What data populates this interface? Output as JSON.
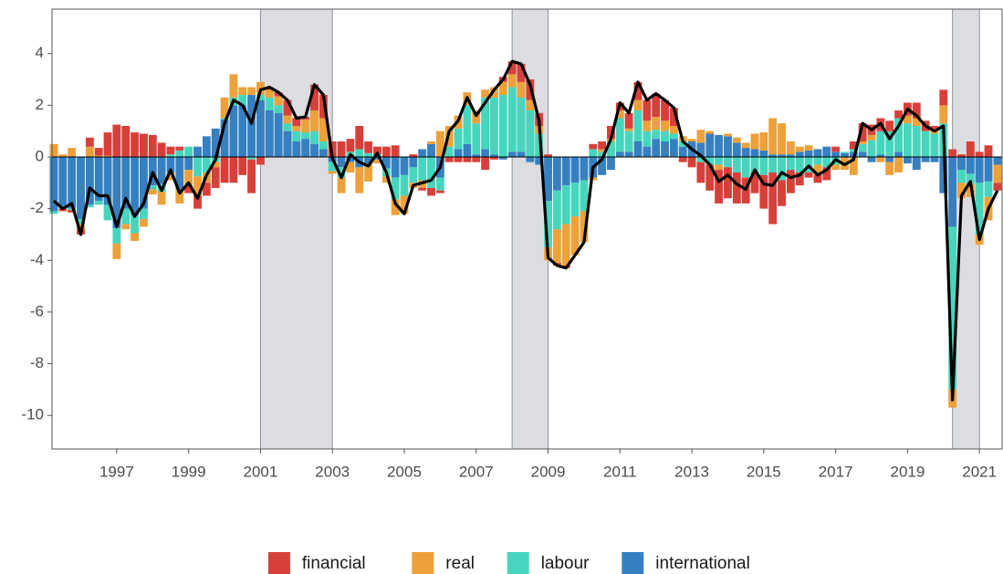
{
  "chart_data": {
    "type": "stacked_bar_line",
    "x": [
      1995.25,
      1995.5,
      1995.75,
      1996,
      1996.25,
      1996.5,
      1996.75,
      1997,
      1997.25,
      1997.5,
      1997.75,
      1998,
      1998.25,
      1998.5,
      1998.75,
      1999,
      1999.25,
      1999.5,
      1999.75,
      2000,
      2000.25,
      2000.5,
      2000.75,
      2001,
      2001.25,
      2001.5,
      2001.75,
      2002,
      2002.25,
      2002.5,
      2002.75,
      2003,
      2003.25,
      2003.5,
      2003.75,
      2004,
      2004.25,
      2004.5,
      2004.75,
      2005,
      2005.25,
      2005.5,
      2005.75,
      2006,
      2006.25,
      2006.5,
      2006.75,
      2007,
      2007.25,
      2007.5,
      2007.75,
      2008,
      2008.25,
      2008.5,
      2008.75,
      2009,
      2009.25,
      2009.5,
      2009.75,
      2010,
      2010.25,
      2010.5,
      2010.75,
      2011,
      2011.25,
      2011.5,
      2011.75,
      2012,
      2012.25,
      2012.5,
      2012.75,
      2013,
      2013.25,
      2013.5,
      2013.75,
      2014,
      2014.25,
      2014.5,
      2014.75,
      2015,
      2015.25,
      2015.5,
      2015.75,
      2016,
      2016.25,
      2016.5,
      2016.75,
      2017,
      2017.25,
      2017.5,
      2017.75,
      2018,
      2018.25,
      2018.5,
      2018.75,
      2019,
      2019.25,
      2019.5,
      2019.75,
      2020,
      2020.25,
      2020.5,
      2020.75,
      2021,
      2021.25,
      2021.5
    ],
    "series": [
      {
        "name": "financial",
        "color": "#d7403a",
        "values": [
          0,
          -0.1,
          -0.1,
          -0.2,
          0.35,
          0.3,
          0.9,
          1.25,
          1.2,
          0.95,
          0.9,
          0.85,
          0.55,
          0.3,
          0.15,
          -0.3,
          -0.5,
          -0.5,
          -0.8,
          -1.0,
          -1.0,
          -0.7,
          -1.3,
          -0.3,
          0.1,
          0.15,
          0.6,
          0.3,
          0.1,
          1.0,
          0.9,
          0.6,
          0.6,
          0.5,
          0.9,
          0.45,
          0.3,
          0.4,
          0.45,
          0,
          0.1,
          -0.1,
          -0.3,
          -0.1,
          -0.2,
          -0.2,
          -0.2,
          -0.2,
          -0.5,
          -0.1,
          0.2,
          0.5,
          0.7,
          0.8,
          0.5,
          0.1,
          -0.1,
          -0.1,
          0,
          0,
          0.2,
          0.3,
          0.5,
          0.3,
          0.6,
          0.7,
          0.8,
          0.9,
          0.8,
          0.7,
          -0.2,
          -0.4,
          -0.8,
          -1.0,
          -1.3,
          -1.2,
          -1.2,
          -1.0,
          -0.8,
          -1.3,
          -2.0,
          -1.0,
          -0.9,
          -0.5,
          -0.2,
          -0.3,
          -0.5,
          0.2,
          0,
          0.3,
          0.7,
          0.4,
          0.5,
          0.4,
          0.3,
          0.5,
          0.6,
          0.4,
          0.1,
          0.6,
          0.3,
          0.1,
          0.6,
          0.2,
          0.45,
          -0.3
        ]
      },
      {
        "name": "real",
        "color": "#eda13a",
        "values": [
          0.5,
          0.1,
          0.35,
          -0.2,
          0.4,
          0.05,
          0.05,
          -0.6,
          -0.2,
          -0.3,
          -0.3,
          -0.2,
          -0.5,
          -0.3,
          -0.55,
          -0.6,
          -0.75,
          -0.4,
          -0.2,
          0.8,
          0.9,
          0.3,
          0.3,
          0.5,
          0.3,
          0.35,
          0.3,
          0.2,
          0.5,
          0.8,
          0.9,
          -0.1,
          -0.6,
          -0.4,
          -1.0,
          -0.7,
          -0.15,
          -0.25,
          -0.6,
          -0.7,
          -0.2,
          -0.3,
          0.1,
          1.0,
          0.8,
          0.5,
          0.5,
          0.5,
          0.3,
          0.4,
          0.5,
          0.5,
          0.6,
          0.4,
          0.3,
          -0.5,
          -1.3,
          -1.6,
          -1.5,
          -1.2,
          -0.1,
          0.1,
          0.1,
          0.3,
          0.1,
          0.4,
          0.4,
          0.5,
          0.4,
          0.3,
          0.2,
          0.1,
          0.5,
          0.1,
          -0.2,
          0.1,
          0.2,
          0.2,
          0.6,
          0.7,
          1.4,
          1.2,
          0.5,
          0.2,
          0.2,
          -0.4,
          0,
          -0.2,
          -0.5,
          -0.7,
          0.1,
          0.2,
          -0.2,
          -0.5,
          -0.6,
          0.3,
          0.3,
          0,
          0.2,
          0.7,
          -0.7,
          -0.6,
          -0.5,
          -0.4,
          -0.9,
          -0.7
        ]
      },
      {
        "name": "labour",
        "color": "#47d6bd",
        "values": [
          -0.1,
          -0.1,
          -0.05,
          -0.2,
          -0.1,
          -0.15,
          -0.6,
          -0.6,
          -0.6,
          -0.7,
          -0.4,
          -0.15,
          -0.3,
          0.1,
          0.25,
          0.4,
          -0.75,
          -0.6,
          -0.2,
          0.05,
          0.3,
          0.4,
          -0.1,
          0.2,
          0.5,
          0.3,
          0.3,
          0.4,
          0.25,
          0.5,
          0.3,
          -0.35,
          -0.4,
          0.2,
          0.3,
          0.15,
          0.1,
          -0.3,
          -0.85,
          -0.8,
          -0.6,
          -0.9,
          -1.2,
          -0.5,
          0.4,
          0.8,
          1.5,
          1.2,
          2.0,
          2.2,
          2.4,
          2.5,
          2.1,
          1.8,
          0.9,
          -1.8,
          -1.5,
          -1.5,
          -1.3,
          -1.2,
          0.3,
          0.2,
          0.6,
          1.3,
          0.8,
          1.2,
          0.6,
          0.35,
          0.4,
          0.2,
          0.2,
          0,
          -0.2,
          -0.3,
          -0.3,
          -0.4,
          -0.6,
          -0.8,
          -0.6,
          -0.7,
          -0.6,
          -0.9,
          -0.5,
          -0.6,
          -0.6,
          -0.3,
          -0.4,
          -0.3,
          0.05,
          0.1,
          0.3,
          0.65,
          0.9,
          1.0,
          1.3,
          1.3,
          1.2,
          1.0,
          0.9,
          1.3,
          -6.3,
          -0.5,
          -0.4,
          -2.0,
          -0.6,
          0
        ]
      },
      {
        "name": "international",
        "color": "#3680c0",
        "values": [
          -2.1,
          -1.9,
          -2.0,
          -2.4,
          -1.85,
          -1.7,
          -1.85,
          -2.75,
          -2.0,
          -2.25,
          -2.0,
          -1.1,
          -1.05,
          -0.6,
          -1.25,
          -0.5,
          0.4,
          0.8,
          1.1,
          1.45,
          2.0,
          2.0,
          2.4,
          2.2,
          1.8,
          1.7,
          1.0,
          0.6,
          0.7,
          0.5,
          0.3,
          -0.2,
          -0.4,
          -0.2,
          -0.4,
          -0.25,
          -0.1,
          -0.45,
          -0.8,
          -0.7,
          -0.4,
          0.3,
          0.5,
          -0.8,
          0,
          0.3,
          0.5,
          0.1,
          0.3,
          0.1,
          -0.1,
          0.2,
          0.2,
          -0.2,
          -0.3,
          -1.7,
          -1.3,
          -1.1,
          -1.0,
          -0.9,
          -0.8,
          -0.7,
          -0.5,
          0.2,
          0.2,
          0.6,
          0.4,
          0.7,
          0.6,
          0.7,
          0.4,
          0.6,
          0.55,
          0.9,
          0.85,
          0.8,
          0.55,
          0.35,
          0.3,
          0.25,
          0.1,
          0.1,
          0.1,
          0.2,
          0.25,
          0.3,
          0.4,
          0.2,
          0.15,
          0.2,
          0.2,
          -0.2,
          0.1,
          -0.2,
          0.2,
          -0.25,
          -0.5,
          -0.2,
          -0.2,
          -1.4,
          -2.7,
          -0.5,
          -0.65,
          -1.0,
          -0.95,
          -0.3
        ]
      }
    ],
    "line": {
      "color": "#000000",
      "values": [
        -1.7,
        -2.0,
        -1.8,
        -3.0,
        -1.2,
        -1.5,
        -1.5,
        -2.7,
        -1.6,
        -2.3,
        -1.8,
        -0.6,
        -1.3,
        -0.5,
        -1.4,
        -1.0,
        -1.6,
        -0.7,
        -0.1,
        1.3,
        2.2,
        2.0,
        1.3,
        2.6,
        2.7,
        2.5,
        2.2,
        1.5,
        1.55,
        2.8,
        2.4,
        -0.05,
        -0.8,
        0.1,
        -0.2,
        -0.35,
        0.15,
        -0.6,
        -1.8,
        -2.2,
        -1.1,
        -1.0,
        -0.9,
        -0.4,
        1.0,
        1.4,
        2.3,
        1.6,
        2.1,
        2.6,
        3.0,
        3.7,
        3.6,
        2.8,
        1.4,
        -3.9,
        -4.2,
        -4.3,
        -3.8,
        -3.3,
        -0.4,
        -0.1,
        0.7,
        2.1,
        1.7,
        2.9,
        2.2,
        2.45,
        2.2,
        1.9,
        0.6,
        0.3,
        0.05,
        -0.3,
        -0.95,
        -0.7,
        -1.05,
        -1.25,
        -0.5,
        -1.05,
        -1.1,
        -0.6,
        -0.8,
        -0.7,
        -0.35,
        -0.7,
        -0.5,
        -0.1,
        -0.3,
        -0.1,
        1.3,
        1.05,
        1.3,
        0.7,
        1.2,
        1.85,
        1.6,
        1.2,
        1.0,
        1.2,
        -9.4,
        -1.5,
        -0.95,
        -3.2,
        -2.0,
        -1.3
      ]
    },
    "shaded_periods": [
      {
        "start": 2001,
        "end": 2003,
        "color": "#dcdde1"
      },
      {
        "start": 2008,
        "end": 2009,
        "color": "#dcdde1"
      },
      {
        "start": 2020.25,
        "end": 2021,
        "color": "#dcdde1"
      }
    ],
    "xlim": [
      1995.2,
      2021.63
    ],
    "xticks": [
      1997,
      1999,
      2001,
      2003,
      2005,
      2007,
      2009,
      2011,
      2013,
      2015,
      2017,
      2019,
      2021
    ],
    "ylim": [
      -11.3,
      5.72
    ],
    "yticks": [
      -10,
      -8,
      -6,
      -4,
      -2,
      0,
      2,
      4
    ],
    "legend": "bottom"
  }
}
